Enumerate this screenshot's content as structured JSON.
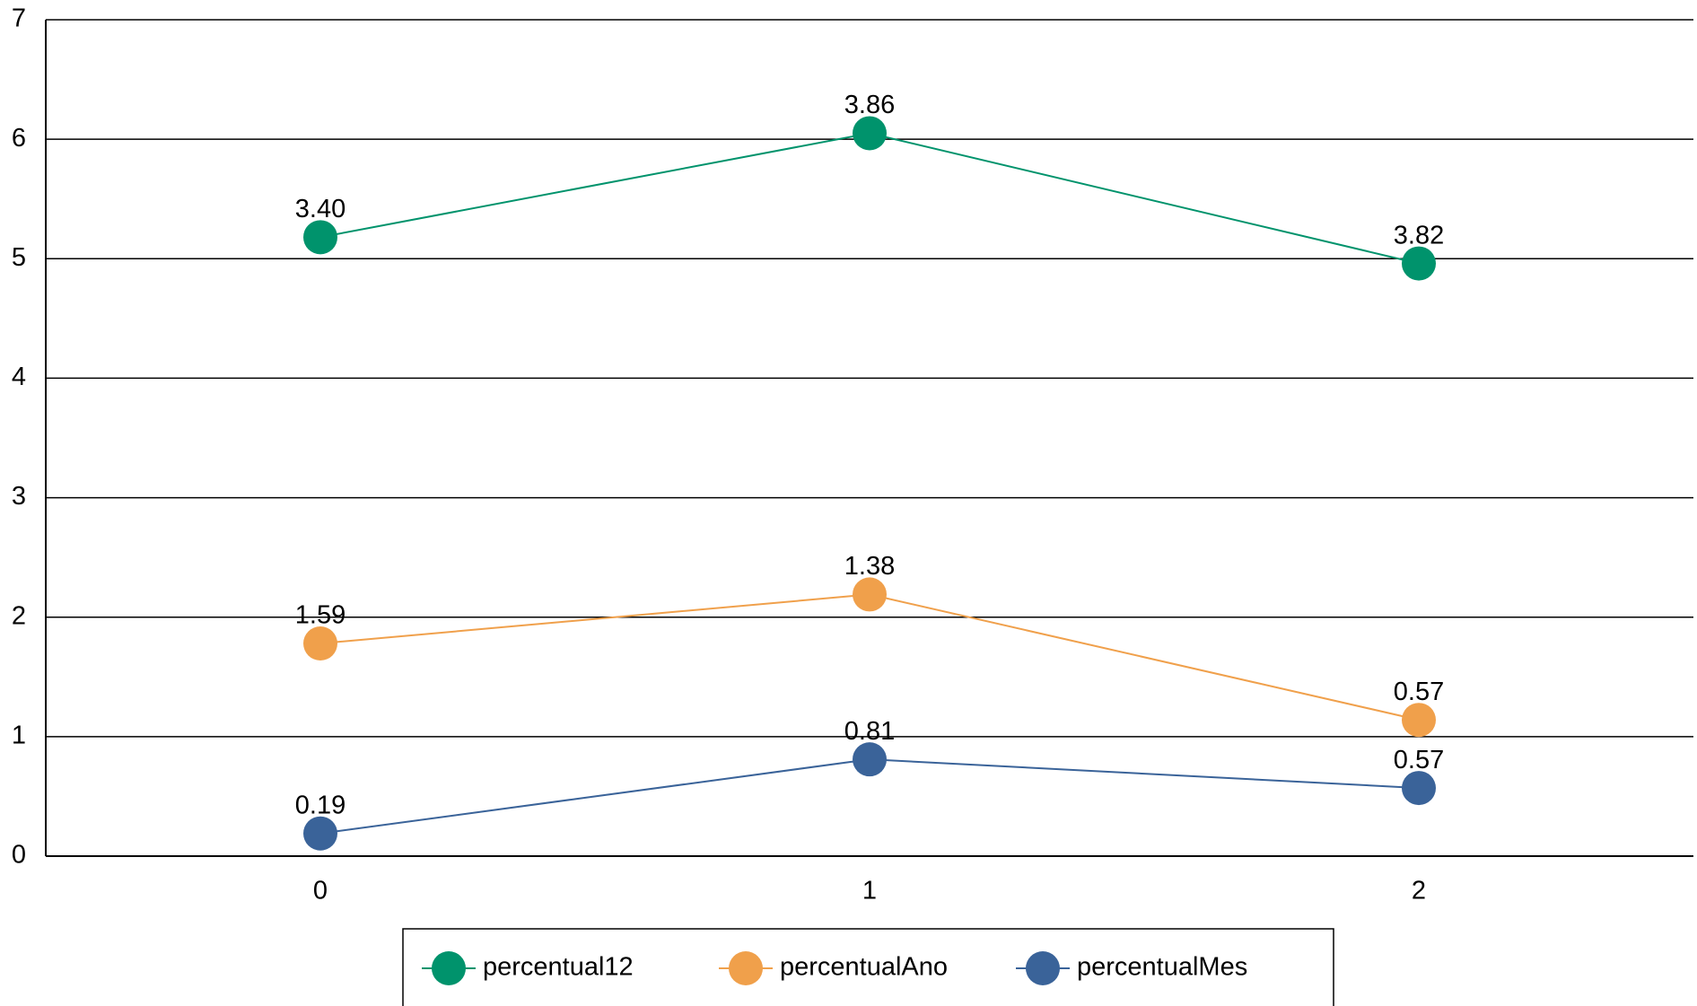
{
  "chart_data": {
    "type": "line",
    "stacked": true,
    "x": [
      0,
      1,
      2
    ],
    "xlim": [
      -0.5,
      2.5
    ],
    "xticks": [
      0,
      1,
      2
    ],
    "ylim": [
      0,
      7
    ],
    "yticks": [
      0,
      1,
      2,
      3,
      4,
      5,
      6,
      7
    ],
    "grid": true,
    "legend": "bottom",
    "series": [
      {
        "name": "percentual12",
        "color": "#00936c",
        "values": [
          3.4,
          3.86,
          3.82
        ],
        "value_labels": [
          "3.40",
          "3.86",
          "3.82"
        ]
      },
      {
        "name": "percentualAno",
        "color": "#f0a04b",
        "values": [
          1.59,
          1.38,
          0.57
        ],
        "value_labels": [
          "1.59",
          "1.38",
          "0.57"
        ]
      },
      {
        "name": "percentualMes",
        "color": "#3a6399",
        "values": [
          0.19,
          0.81,
          0.57
        ],
        "value_labels": [
          "0.19",
          "0.81",
          "0.57"
        ]
      }
    ]
  }
}
